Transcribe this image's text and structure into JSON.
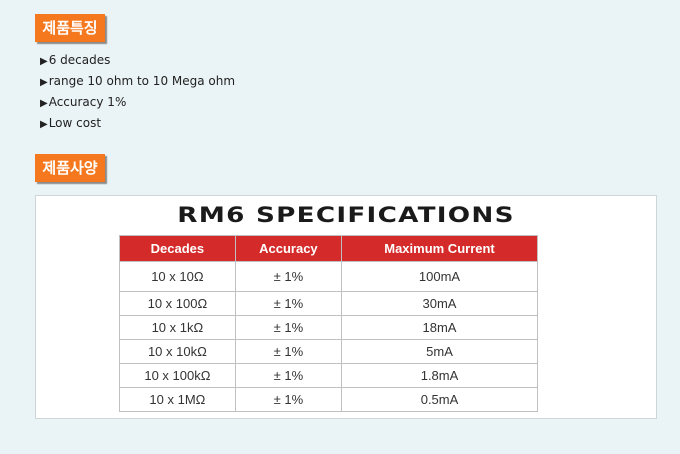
{
  "features": {
    "heading": "제품특징",
    "items": [
      "6 decades",
      "range 10 ohm to 10 Mega ohm",
      "Accuracy 1%",
      "Low cost"
    ],
    "bullet_icon": "triangle-right"
  },
  "specs": {
    "heading": "제품사양",
    "title": "RM6 SPECIFICATIONS",
    "columns": [
      "Decades",
      "Accuracy",
      "Maximum Current"
    ],
    "rows": [
      [
        "10 x 10Ω",
        "± 1%",
        "100mA"
      ],
      [
        "10 x 100Ω",
        "± 1%",
        "30mA"
      ],
      [
        "10 x 1kΩ",
        "± 1%",
        "18mA"
      ],
      [
        "10 x 10kΩ",
        "± 1%",
        "5mA"
      ],
      [
        "10 x 100kΩ",
        "± 1%",
        "1.8mA"
      ],
      [
        "10 x 1MΩ",
        "± 1%",
        "0.5mA"
      ]
    ]
  },
  "colors": {
    "badge": "#f5781e",
    "header": "#d42a2a",
    "background": "#eaf3f5"
  }
}
